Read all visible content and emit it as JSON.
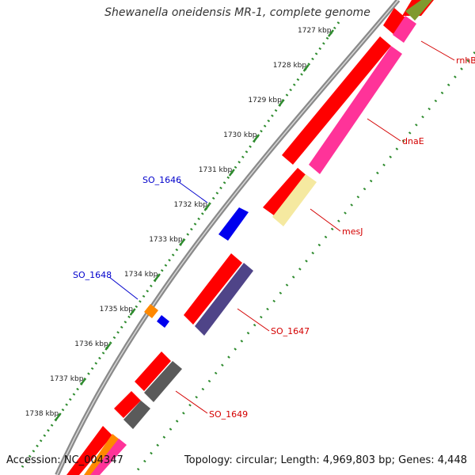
{
  "title": "Shewanella oneidensis MR-1, complete genome",
  "footer": {
    "accession": "Accession: NC_004347",
    "summary": "Topology: circular; Length: 4,969,803 bp; Genes: 4,448"
  },
  "colors": {
    "backbone": "#8a8a8a",
    "tick_major": "#2e8b2e",
    "cds": "#ff0000",
    "cds_other": "#ff3399",
    "label_red": "#d40000",
    "label_blue": "#0000cc"
  },
  "ticks": [
    "1727 kbp",
    "1728 kbp",
    "1729 kbp",
    "1730 kbp",
    "1731 kbp",
    "1732 kbp",
    "1733 kbp",
    "1734 kbp",
    "1735 kbp",
    "1736 kbp",
    "1737 kbp",
    "1738 kbp"
  ],
  "genes": [
    {
      "name": "rnhB",
      "strand": "plus",
      "color": "red"
    },
    {
      "name": "dnaE",
      "strand": "plus",
      "color": "red"
    },
    {
      "name": "mesJ",
      "strand": "plus",
      "color": "red"
    },
    {
      "name": "SO_1646",
      "strand": "minus",
      "color": "blue"
    },
    {
      "name": "SO_1647",
      "strand": "plus",
      "color": "red"
    },
    {
      "name": "SO_1648",
      "strand": "minus",
      "color": "blue"
    },
    {
      "name": "SO_1649",
      "strand": "plus",
      "color": "red"
    }
  ]
}
